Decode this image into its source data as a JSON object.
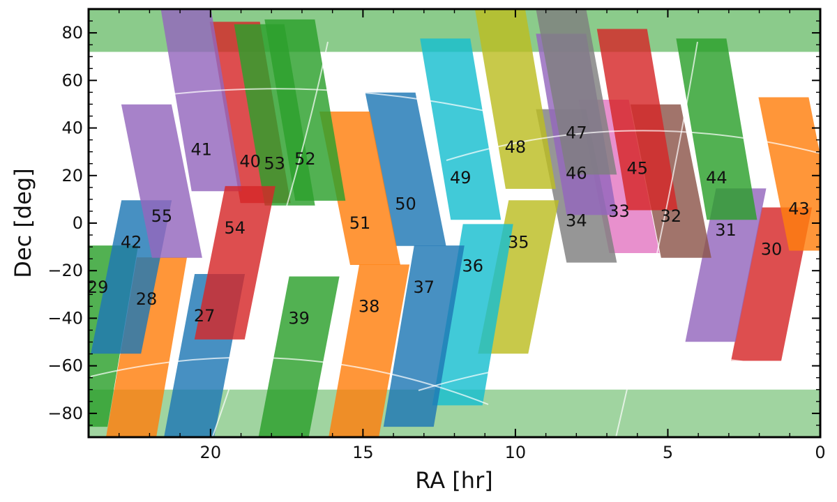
{
  "chart_data": {
    "type": "scatter",
    "title": "",
    "xlabel": "RA [hr]",
    "ylabel": "Dec [deg]",
    "xlim": [
      24,
      0
    ],
    "ylim": [
      -90,
      90
    ],
    "x_ticks": [
      20,
      15,
      10,
      5,
      0
    ],
    "y_ticks": [
      80,
      60,
      40,
      20,
      0,
      -20,
      -40,
      -60,
      -80
    ],
    "grid": false,
    "legend": "none",
    "sectors": [
      {
        "id": "27",
        "ra": 20.2,
        "dec": -39.0,
        "color": "#1f77b4"
      },
      {
        "id": "28",
        "ra": 22.1,
        "dec": -32.0,
        "color": "#ff7f0e"
      },
      {
        "id": "29",
        "ra": 23.7,
        "dec": -27.0,
        "color": "#2ca02c"
      },
      {
        "id": "30",
        "ra": 1.6,
        "dec": -11.0,
        "color": "#d62728"
      },
      {
        "id": "31",
        "ra": 3.1,
        "dec": -3.0,
        "color": "#9467bd"
      },
      {
        "id": "32",
        "ra": 4.9,
        "dec": 3.0,
        "color": "#8c564b"
      },
      {
        "id": "33",
        "ra": 6.6,
        "dec": 5.0,
        "color": "#e377c2"
      },
      {
        "id": "34",
        "ra": 8.0,
        "dec": 1.0,
        "color": "#7f7f7f"
      },
      {
        "id": "35",
        "ra": 9.9,
        "dec": -8.0,
        "color": "#bcbd22"
      },
      {
        "id": "36",
        "ra": 11.4,
        "dec": -18.0,
        "color": "#17becf"
      },
      {
        "id": "37",
        "ra": 13.0,
        "dec": -27.0,
        "color": "#1f77b4"
      },
      {
        "id": "38",
        "ra": 14.8,
        "dec": -35.0,
        "color": "#ff7f0e"
      },
      {
        "id": "39",
        "ra": 17.1,
        "dec": -40.0,
        "color": "#2ca02c"
      },
      {
        "id": "40",
        "ra": 18.7,
        "dec": 26.0,
        "color": "#d62728"
      },
      {
        "id": "41",
        "ra": 20.3,
        "dec": 31.0,
        "color": "#9467bd"
      },
      {
        "id": "42",
        "ra": 22.6,
        "dec": -8.0,
        "color": "#1f77b4"
      },
      {
        "id": "43",
        "ra": 0.7,
        "dec": 6.0,
        "color": "#ff7f0e"
      },
      {
        "id": "44",
        "ra": 3.4,
        "dec": 19.0,
        "color": "#2ca02c"
      },
      {
        "id": "45",
        "ra": 6.0,
        "dec": 23.0,
        "color": "#d62728"
      },
      {
        "id": "46",
        "ra": 8.0,
        "dec": 21.0,
        "color": "#9467bd"
      },
      {
        "id": "47",
        "ra": 8.0,
        "dec": 38.0,
        "color": "#7f7f7f"
      },
      {
        "id": "48",
        "ra": 10.0,
        "dec": 32.0,
        "color": "#bcbd22"
      },
      {
        "id": "49",
        "ra": 11.8,
        "dec": 19.0,
        "color": "#17becf"
      },
      {
        "id": "50",
        "ra": 13.6,
        "dec": 8.0,
        "color": "#1f77b4"
      },
      {
        "id": "51",
        "ra": 15.1,
        "dec": 0.0,
        "color": "#ff7f0e"
      },
      {
        "id": "52",
        "ra": 16.9,
        "dec": 27.0,
        "color": "#2ca02c"
      },
      {
        "id": "53",
        "ra": 17.9,
        "dec": 25.0,
        "color": "#2ca02c"
      },
      {
        "id": "54",
        "ra": 19.2,
        "dec": -2.0,
        "color": "#d62728"
      },
      {
        "id": "55",
        "ra": 21.6,
        "dec": 3.0,
        "color": "#9467bd"
      }
    ]
  }
}
